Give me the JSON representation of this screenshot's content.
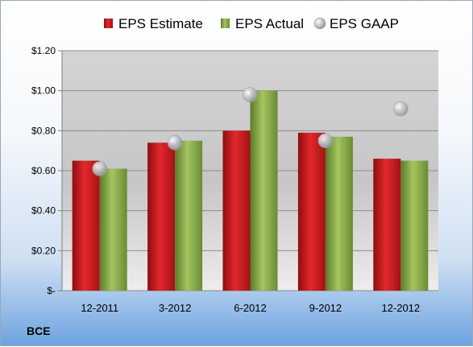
{
  "company": "BCE",
  "chart_data": {
    "type": "bar",
    "categories": [
      "12-2011",
      "3-2012",
      "6-2012",
      "9-2012",
      "12-2012"
    ],
    "series": [
      {
        "name": "EPS Estimate",
        "values": [
          0.65,
          0.74,
          0.8,
          0.79,
          0.66
        ],
        "color": "#c0161b",
        "kind": "bar"
      },
      {
        "name": "EPS Actual",
        "values": [
          0.61,
          0.75,
          1.0,
          0.77,
          0.65
        ],
        "color": "#7ea03e",
        "kind": "bar"
      },
      {
        "name": "EPS GAAP",
        "values": [
          0.61,
          0.74,
          0.98,
          0.75,
          0.91
        ],
        "color": "#b8bcc2",
        "kind": "scatter"
      }
    ],
    "yticks": [
      "$-",
      "$0.20",
      "$0.40",
      "$0.60",
      "$0.80",
      "$1.00",
      "$1.20"
    ],
    "ylim": [
      0,
      1.2
    ],
    "grid": true,
    "legend": "top"
  }
}
